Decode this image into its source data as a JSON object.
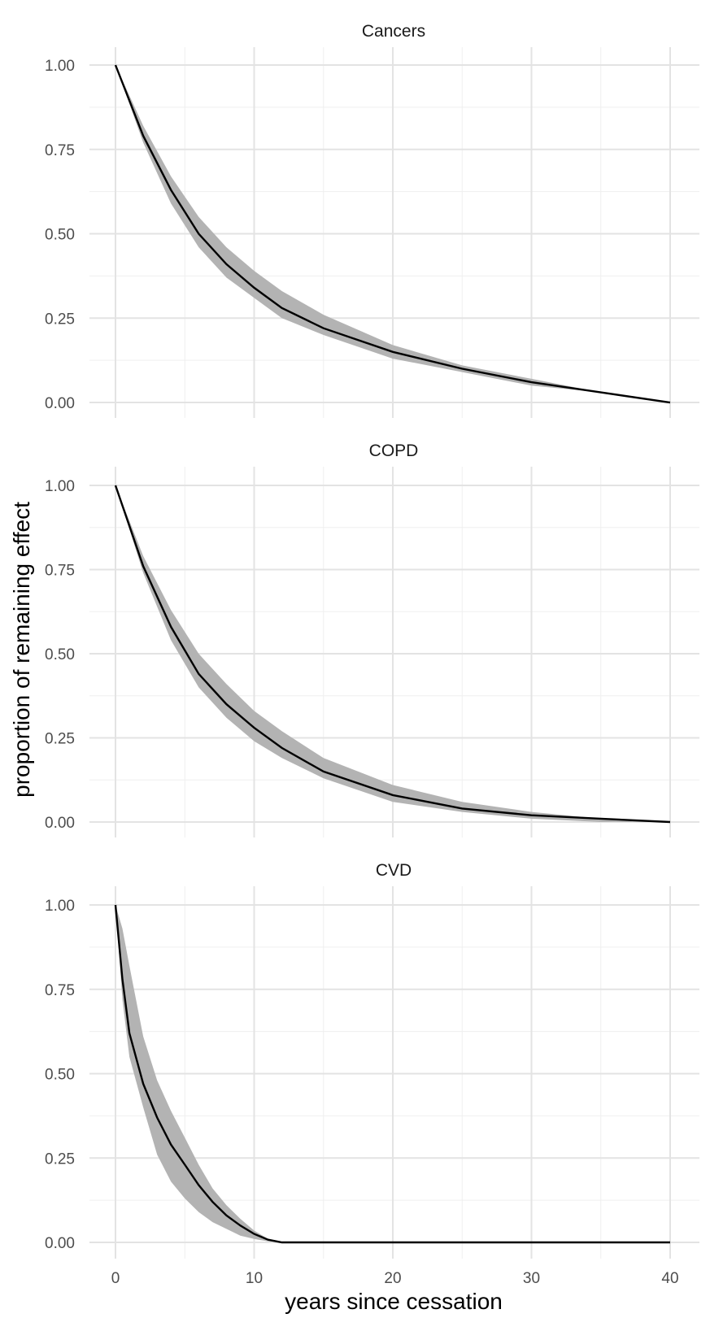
{
  "chart_data": [
    {
      "type": "line",
      "panel": "Cancers",
      "title": "Cancers",
      "xlabel": "years since cessation",
      "ylabel": "proportion of remaining effect",
      "xlim": [
        0,
        40
      ],
      "ylim": [
        0,
        1
      ],
      "x_ticks": [
        "0",
        "10",
        "20",
        "30",
        "40"
      ],
      "y_ticks": [
        "0.00",
        "0.25",
        "0.50",
        "0.75",
        "1.00"
      ],
      "grid": true,
      "x": [
        0,
        2,
        4,
        6,
        8,
        10,
        12,
        15,
        20,
        25,
        30,
        35,
        40
      ],
      "y": [
        1.0,
        0.79,
        0.63,
        0.5,
        0.41,
        0.34,
        0.28,
        0.22,
        0.15,
        0.1,
        0.06,
        0.03,
        0.0
      ],
      "band_lower": [
        1.0,
        0.77,
        0.59,
        0.46,
        0.37,
        0.31,
        0.25,
        0.2,
        0.13,
        0.09,
        0.05,
        0.03,
        0.0
      ],
      "band_upper": [
        1.0,
        0.82,
        0.67,
        0.55,
        0.46,
        0.39,
        0.33,
        0.26,
        0.17,
        0.11,
        0.07,
        0.03,
        0.0
      ]
    },
    {
      "type": "line",
      "panel": "COPD",
      "title": "COPD",
      "xlabel": "years since cessation",
      "ylabel": "proportion of remaining effect",
      "xlim": [
        0,
        40
      ],
      "ylim": [
        0,
        1
      ],
      "x_ticks": [
        "0",
        "10",
        "20",
        "30",
        "40"
      ],
      "y_ticks": [
        "0.00",
        "0.25",
        "0.50",
        "0.75",
        "1.00"
      ],
      "grid": true,
      "x": [
        0,
        2,
        4,
        6,
        8,
        10,
        12,
        15,
        20,
        25,
        30,
        35,
        40
      ],
      "y": [
        1.0,
        0.76,
        0.58,
        0.44,
        0.35,
        0.28,
        0.22,
        0.15,
        0.08,
        0.04,
        0.02,
        0.01,
        0.0
      ],
      "band_lower": [
        1.0,
        0.74,
        0.54,
        0.4,
        0.31,
        0.24,
        0.19,
        0.13,
        0.06,
        0.03,
        0.01,
        0.0,
        0.0
      ],
      "band_upper": [
        1.0,
        0.79,
        0.63,
        0.5,
        0.41,
        0.33,
        0.27,
        0.19,
        0.11,
        0.06,
        0.03,
        0.01,
        0.0
      ]
    },
    {
      "type": "line",
      "panel": "CVD",
      "title": "CVD",
      "xlabel": "years since cessation",
      "ylabel": "proportion of remaining effect",
      "xlim": [
        0,
        40
      ],
      "ylim": [
        0,
        1
      ],
      "x_ticks": [
        "0",
        "10",
        "20",
        "30",
        "40"
      ],
      "y_ticks": [
        "0.00",
        "0.25",
        "0.50",
        "0.75",
        "1.00"
      ],
      "grid": true,
      "x": [
        0,
        0.5,
        1,
        2,
        3,
        4,
        5,
        6,
        7,
        8,
        9,
        10,
        11,
        12,
        13,
        20,
        30,
        40
      ],
      "y": [
        1.0,
        0.78,
        0.62,
        0.47,
        0.37,
        0.29,
        0.23,
        0.17,
        0.12,
        0.08,
        0.05,
        0.025,
        0.008,
        0.0,
        0.0,
        0.0,
        0.0,
        0.0
      ],
      "band_lower": [
        1.0,
        0.72,
        0.55,
        0.4,
        0.26,
        0.18,
        0.13,
        0.09,
        0.06,
        0.04,
        0.02,
        0.01,
        0.003,
        0.0,
        0.0,
        0.0,
        0.0,
        0.0
      ],
      "band_upper": [
        1.0,
        0.93,
        0.82,
        0.61,
        0.48,
        0.39,
        0.31,
        0.23,
        0.16,
        0.11,
        0.07,
        0.035,
        0.01,
        0.0,
        0.0,
        0.0,
        0.0,
        0.0
      ]
    }
  ],
  "axes": {
    "x_title": "years since cessation",
    "y_title": "proportion of remaining effect"
  },
  "colors": {
    "band": "#b3b3b3",
    "line": "#000000",
    "grid_major": "#e3e3e3",
    "grid_minor": "#efefef",
    "background": "#ffffff"
  }
}
